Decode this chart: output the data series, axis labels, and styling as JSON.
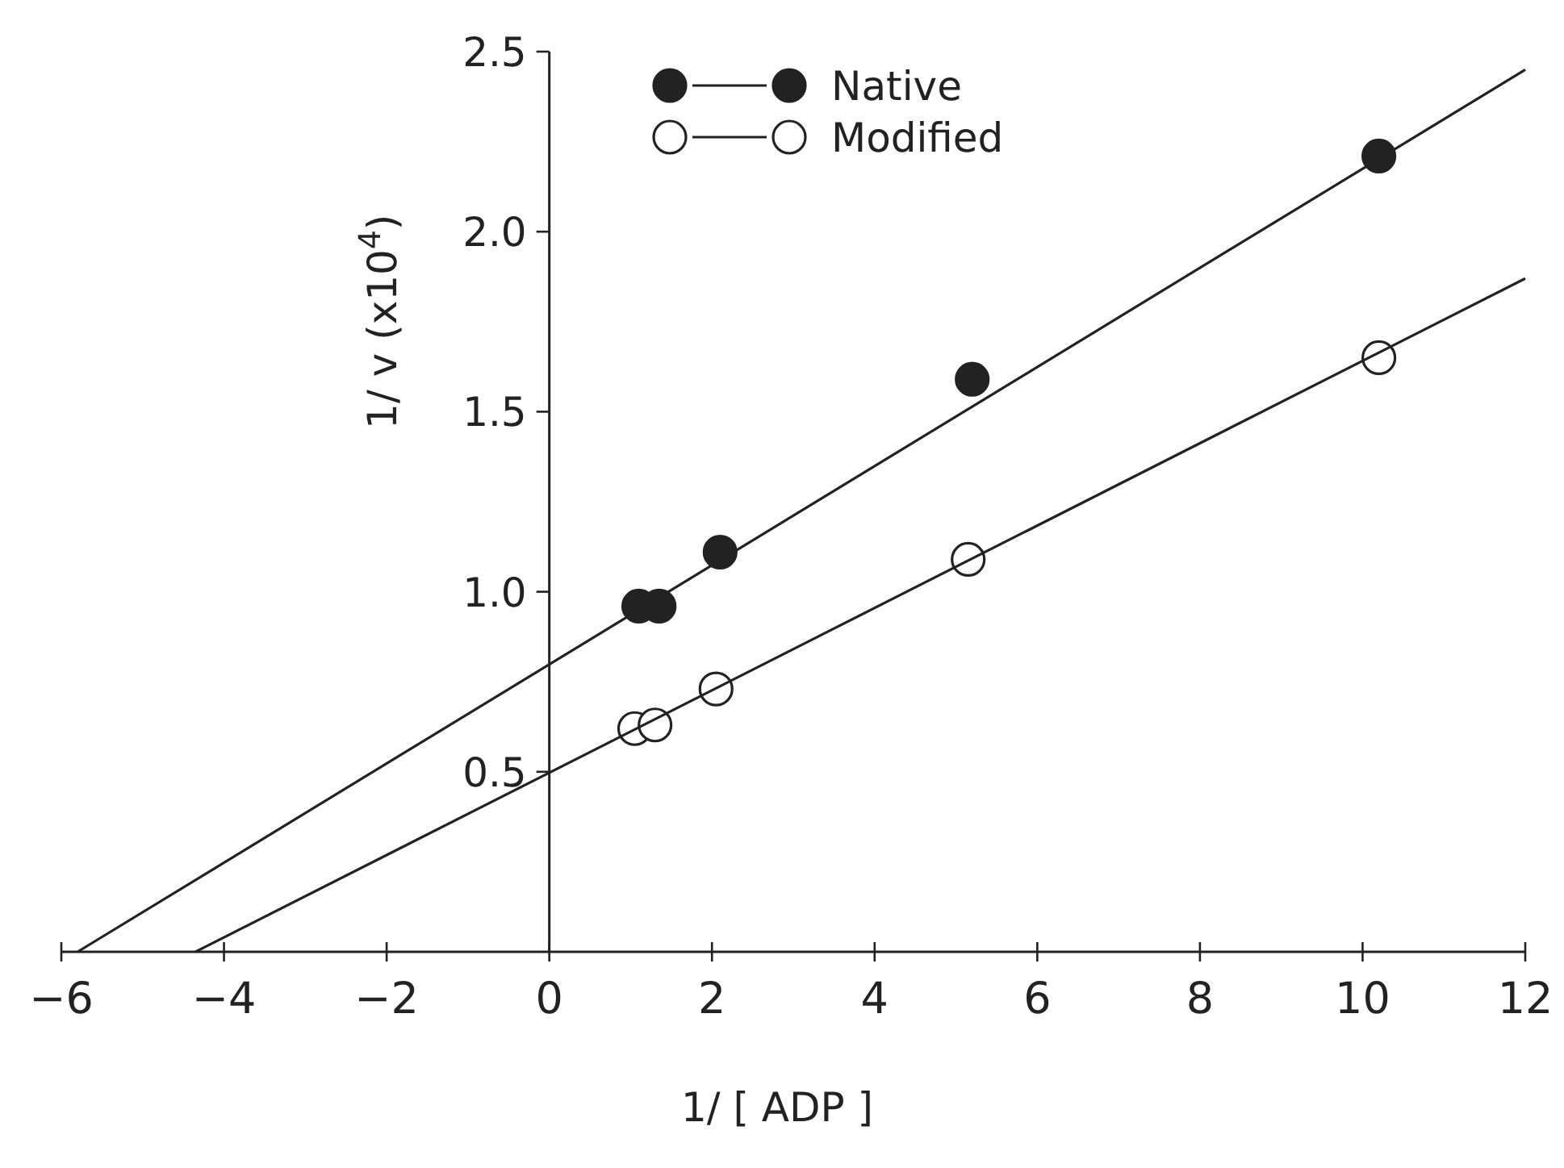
{
  "chart_data": {
    "type": "scatter",
    "xlabel": "1/ [ ADP ]",
    "ylabel": "1/ v (x10$^{4}$)",
    "xlim": [
      -6,
      12
    ],
    "xticks": [
      -6,
      -4,
      -2,
      0,
      2,
      4,
      6,
      8,
      10,
      12
    ],
    "ylim": [
      0,
      2.5
    ],
    "yticks": [
      {
        "value": 0.5,
        "label": "0.5"
      },
      {
        "value": 1,
        "label": "1.0"
      },
      {
        "value": 1.5,
        "label": "1.5"
      },
      {
        "value": 2,
        "label": "2.0"
      },
      {
        "value": 2.5,
        "label": "2.5"
      }
    ],
    "grid": false,
    "legend": "top",
    "marker": "circle",
    "series": [
      {
        "name": "Native",
        "color": "#222222",
        "x": [
          1.1,
          1.35,
          2.1,
          5.2,
          10.2
        ],
        "values": [
          0.96,
          0.96,
          1.11,
          1.59,
          2.21
        ]
      },
      {
        "name": "Modified",
        "color": "#ffffff",
        "x": [
          1.05,
          1.3,
          2.05,
          5.15,
          10.2
        ],
        "values": [
          0.62,
          0.63,
          0.73,
          1.09,
          1.65
        ]
      },
      {
        "type": "line",
        "marker": "none",
        "color": "#222222",
        "x": [
          -5.8,
          12
        ],
        "values": [
          0,
          2.45
        ]
      },
      {
        "type": "line",
        "marker": "none",
        "color": "#222222",
        "x": [
          -4.35,
          12
        ],
        "values": [
          0,
          1.87
        ]
      }
    ]
  }
}
